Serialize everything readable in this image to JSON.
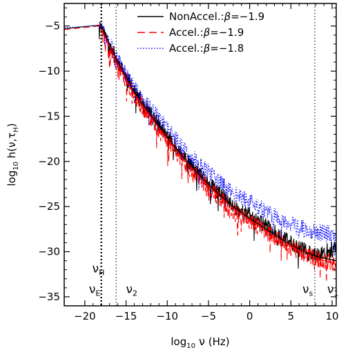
{
  "chart_data": {
    "type": "line",
    "title": "",
    "xlabel": {
      "prefix": "log",
      "sub": "10",
      "var": " ν",
      "unit": " (Hz)"
    },
    "ylabel": {
      "prefix": "log",
      "sub": "10",
      "main": " h(ν,τ",
      "sub2": "H",
      "close": ")"
    },
    "xlim": [
      -22.5,
      10.5
    ],
    "ylim": [
      -36,
      -2.5
    ],
    "xticks": [
      -20,
      -15,
      -10,
      -5,
      0,
      5,
      10
    ],
    "xtick_labels": [
      "−20",
      "−15",
      "−10",
      "−5",
      "0",
      "5",
      "10"
    ],
    "yticks": [
      -35,
      -30,
      -25,
      -20,
      -15,
      -10,
      -5
    ],
    "ytick_labels": [
      "−35",
      "−30",
      "−25",
      "−20",
      "−15",
      "−10",
      "−5"
    ],
    "grid": false,
    "legend_position": "top-right",
    "legend": [
      {
        "prefix": "NonAccel.:",
        "symbol": "β",
        "value": "=−1.9",
        "color": "#000000",
        "dash": "solid"
      },
      {
        "prefix": "Accel.:",
        "symbol": "β",
        "value": "=−1.9",
        "color": "#ff0000",
        "dash": "dashed"
      },
      {
        "prefix": "Accel.:",
        "symbol": "β",
        "value": "=−1.8",
        "color": "#0000ff",
        "dash": "dotted"
      }
    ],
    "vlines": [
      {
        "x": -18.0,
        "style": "thick-dotted"
      },
      {
        "x": -16.2,
        "style": "dotted"
      },
      {
        "x": 7.9,
        "style": "dotted"
      }
    ],
    "markers": [
      {
        "sym": "ν",
        "sub": "H",
        "x": -19.1,
        "y": -32.3
      },
      {
        "sym": "ν",
        "sub": "E",
        "x": -19.5,
        "y": -34.6
      },
      {
        "sym": "ν",
        "sub": "2",
        "x": -15.0,
        "y": -34.6
      },
      {
        "sym": "ν",
        "sub": "s",
        "x": 6.4,
        "y": -34.6
      },
      {
        "sym": "ν",
        "sub": "1",
        "x": 9.4,
        "y": -34.6
      }
    ],
    "series": [
      {
        "name": "NonAccel.:β=−1.9",
        "color": "#000000",
        "dash": "solid",
        "noise_seed": 11,
        "noise_amp": 0.9,
        "x": [
          -22.5,
          -18.2,
          -18.0,
          -16.0,
          -14.0,
          -12.0,
          -10.0,
          -8.0,
          -6.0,
          -4.0,
          -2.0,
          0.0,
          2.0,
          4.0,
          6.0,
          8.0,
          10.5
        ],
        "y": [
          -5.3,
          -4.9,
          -5.0,
          -9.0,
          -12.3,
          -14.8,
          -17.2,
          -19.6,
          -21.6,
          -23.3,
          -25.0,
          -26.0,
          -27.2,
          -28.5,
          -29.5,
          -30.5,
          -29.5
        ]
      },
      {
        "name": "Accel.:β=−1.9",
        "color": "#ff0000",
        "dash": "dashed",
        "noise_seed": 23,
        "noise_amp": 1.0,
        "x": [
          -22.5,
          -18.2,
          -18.0,
          -16.0,
          -14.0,
          -12.0,
          -10.0,
          -8.0,
          -6.0,
          -4.0,
          -2.0,
          0.0,
          2.0,
          4.0,
          6.0,
          8.0,
          10.5
        ],
        "y": [
          -5.4,
          -5.0,
          -5.2,
          -9.3,
          -12.6,
          -15.2,
          -17.6,
          -20.0,
          -22.0,
          -23.8,
          -25.4,
          -26.6,
          -27.8,
          -29.0,
          -30.0,
          -30.8,
          -31.2
        ]
      },
      {
        "name": "Accel.:β=−1.8",
        "color": "#0000ff",
        "dash": "dotted",
        "noise_seed": 37,
        "noise_amp": 0.95,
        "x": [
          -22.5,
          -18.2,
          -18.0,
          -16.0,
          -14.0,
          -12.0,
          -10.0,
          -8.0,
          -6.0,
          -4.0,
          -2.0,
          0.0,
          2.0,
          4.0,
          6.0,
          8.0,
          10.5
        ],
        "y": [
          -5.2,
          -4.9,
          -5.0,
          -8.8,
          -11.9,
          -14.2,
          -16.4,
          -18.6,
          -20.4,
          -22.0,
          -23.4,
          -24.5,
          -25.6,
          -26.5,
          -27.3,
          -27.8,
          -28.0
        ]
      },
      {
        "name": "",
        "color": "#ff0000",
        "dash": "solid",
        "noise_seed": 0,
        "noise_amp": 0,
        "x": [
          -18.0,
          -16.0,
          -14.0,
          -12.0,
          -10.0,
          -8.0,
          -6.0,
          -4.0,
          -2.0,
          0.0,
          2.0,
          4.0,
          6.0,
          8.0,
          10.5
        ],
        "y": [
          -5.2,
          -9.2,
          -12.5,
          -15.1,
          -17.5,
          -19.8,
          -21.8,
          -23.6,
          -25.2,
          -26.5,
          -27.7,
          -28.9,
          -29.9,
          -30.7,
          -31.4
        ]
      },
      {
        "name": "",
        "color": "#000000",
        "dash": "solid",
        "noise_seed": 0,
        "noise_amp": 0,
        "x": [
          -18.0,
          -16.0,
          -14.0,
          -12.0,
          -10.0,
          -8.0,
          -6.0,
          -4.0,
          -2.0,
          0.0,
          2.0,
          4.0,
          6.0,
          8.0,
          10.5
        ],
        "y": [
          -5.0,
          -9.0,
          -12.3,
          -14.9,
          -17.3,
          -19.6,
          -21.6,
          -23.4,
          -25.0,
          -26.3,
          -27.5,
          -28.7,
          -29.7,
          -30.5,
          -31.0
        ]
      }
    ]
  }
}
